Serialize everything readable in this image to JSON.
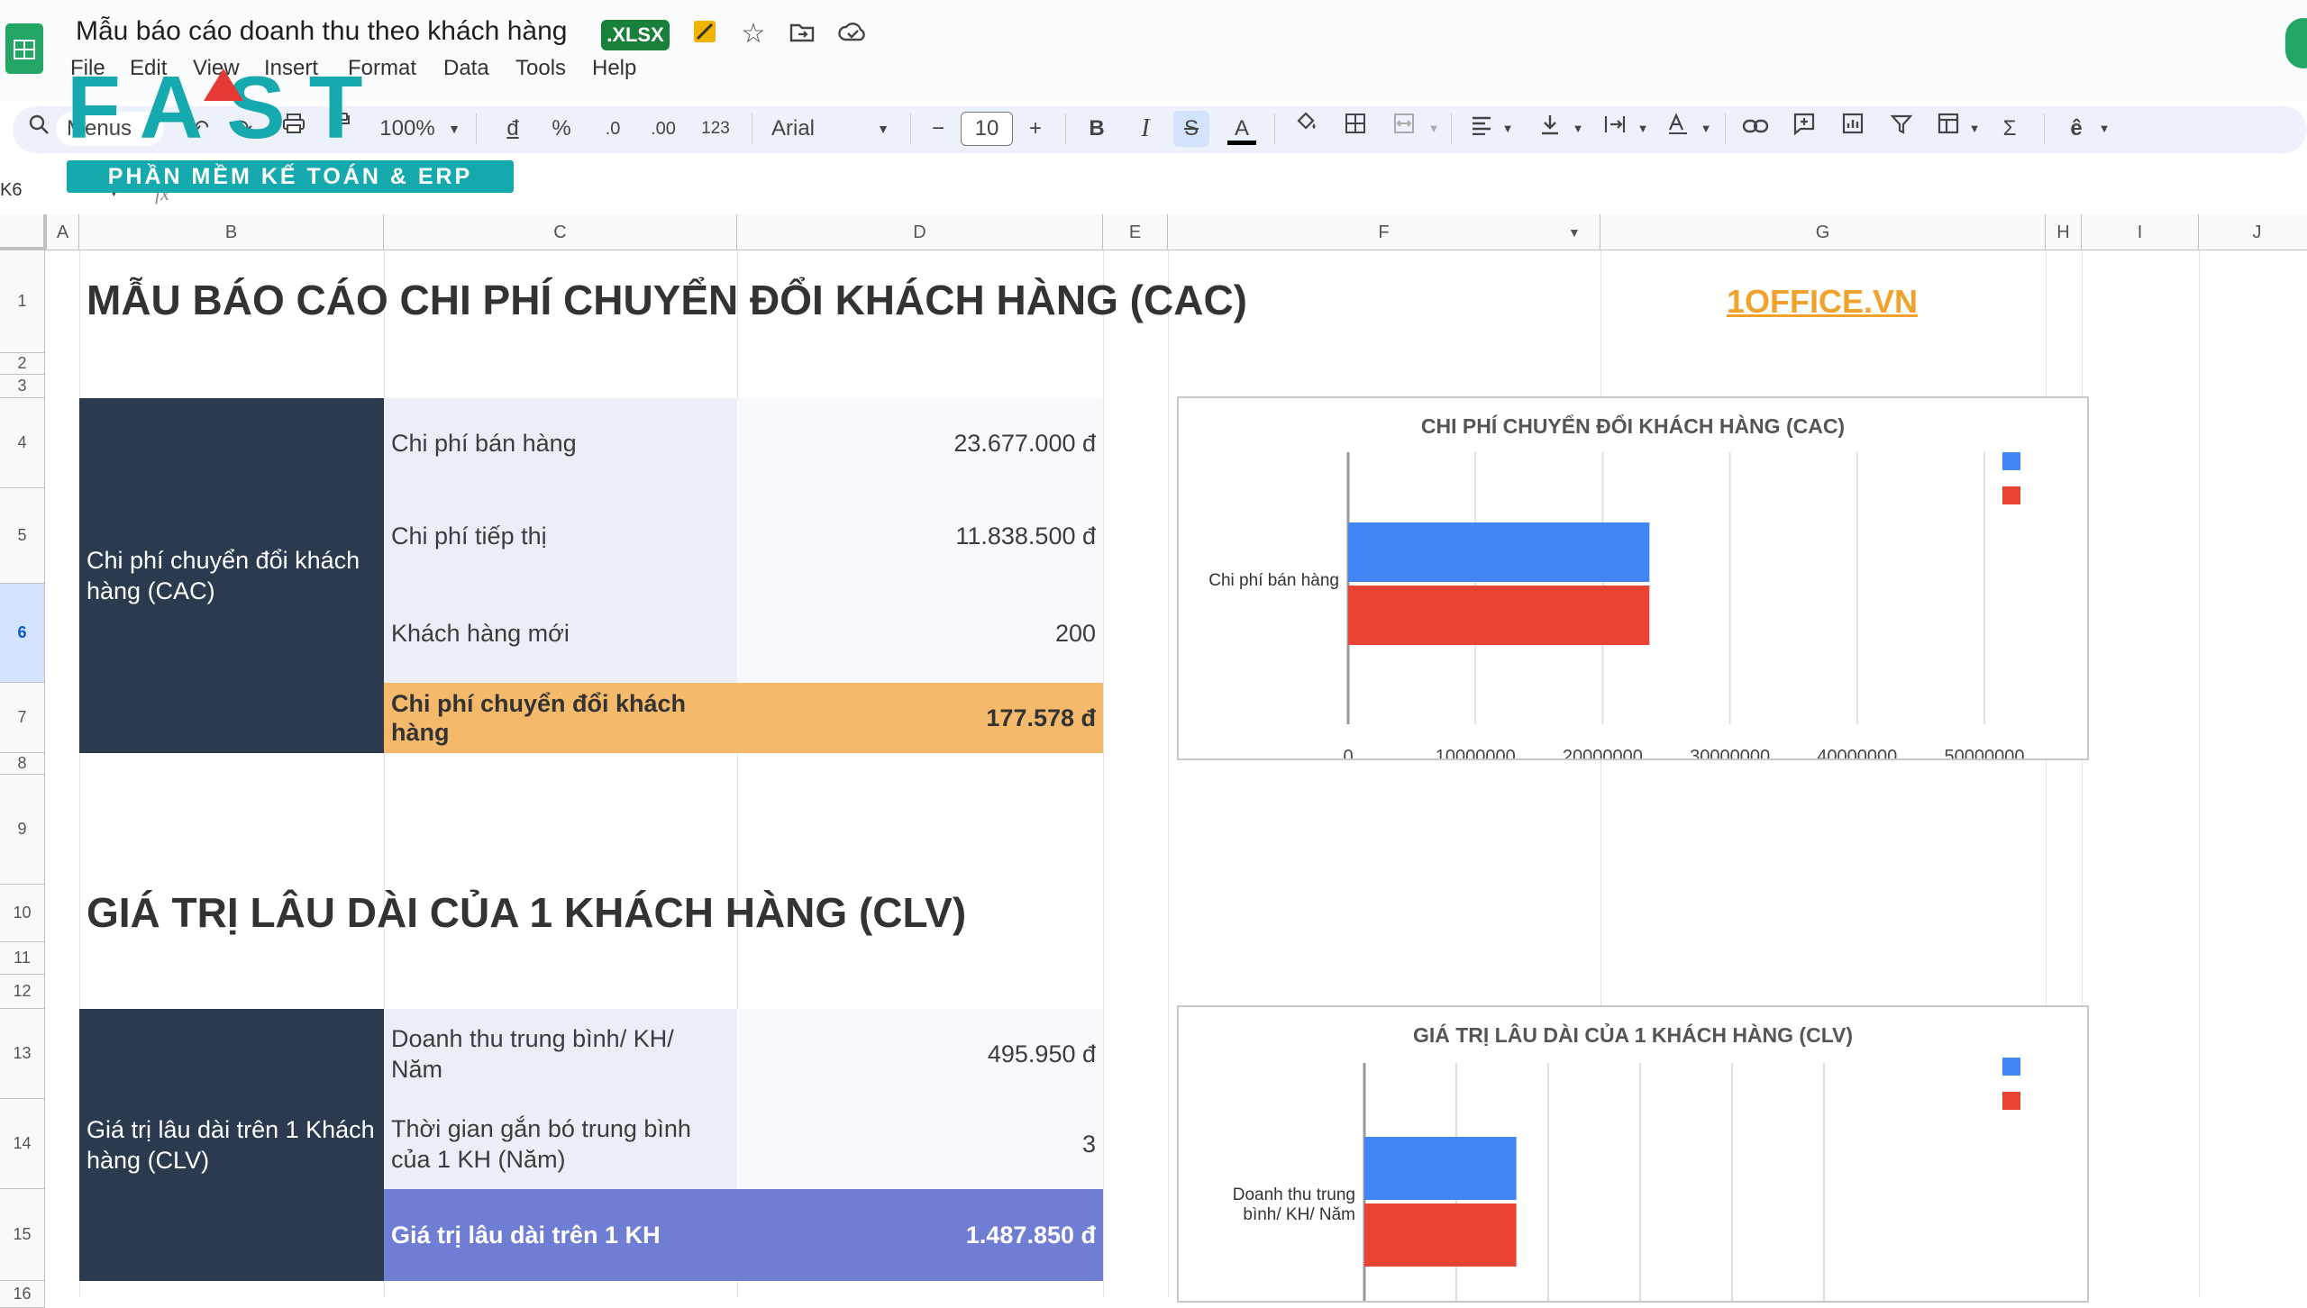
{
  "app": {
    "title": "Mẫu báo cáo doanh thu theo khách hàng",
    "badge": ".XLSX",
    "menu": [
      "File",
      "Edit",
      "View",
      "Insert",
      "Format",
      "Data",
      "Tools",
      "Help"
    ]
  },
  "toolbar": {
    "search_text": "Menus",
    "zoom": "100%",
    "currency": "đ",
    "percent": "%",
    "dec_decrease": ".0",
    "dec_increase": ".00",
    "number_format": "123",
    "font": "Arial",
    "font_size": "10",
    "minus": "−",
    "plus": "+",
    "bold": "B",
    "italic": "I",
    "strike": "S",
    "textcolor": "A",
    "sigma": "Σ"
  },
  "formula_bar": {
    "cell_ref": "K6",
    "fx": "fx"
  },
  "watermark": {
    "letters": "FAST",
    "subtitle": "PHẦN MỀM KẾ TOÁN & ERP"
  },
  "columns": [
    "A",
    "B",
    "C",
    "D",
    "E",
    "F",
    "G",
    "H",
    "I",
    "J"
  ],
  "rows": [
    "1",
    "2",
    "3",
    "4",
    "5",
    "6",
    "7",
    "8",
    "9",
    "10",
    "11",
    "12",
    "13",
    "14",
    "15",
    "16"
  ],
  "cac": {
    "title": "MẪU BÁO CÁO CHI PHÍ CHUYỂN ĐỔI KHÁCH HÀNG (CAC)",
    "link": "1OFFICE.VN",
    "merged_label": "Chi phí chuyển đổi khách hàng (CAC)",
    "rows": [
      {
        "label": "Chi phí bán hàng",
        "value": "23.677.000 đ"
      },
      {
        "label": "Chi phí tiếp thị",
        "value": "11.838.500 đ"
      },
      {
        "label": "Khách hàng mới",
        "value": "200"
      }
    ],
    "total_label": "Chi phí chuyển đổi khách hàng",
    "total_value": "177.578 đ"
  },
  "clv": {
    "title": "GIÁ TRỊ LÂU DÀI CỦA 1 KHÁCH HÀNG (CLV)",
    "merged_label": "Giá trị lâu dài trên 1 Khách hàng (CLV)",
    "rows": [
      {
        "label": "Doanh thu trung bình/ KH/ Năm",
        "value": "495.950 đ"
      },
      {
        "label": "Thời gian gắn bó trung bình của 1 KH (Năm)",
        "value": "3"
      }
    ],
    "total_label": "Giá trị lâu dài trên 1 KH",
    "total_value": "1.487.850 đ"
  },
  "chart_data": [
    {
      "type": "bar",
      "orientation": "horizontal",
      "title": "CHI PHÍ CHUYỂN ĐỔI KHÁCH HÀNG (CAC)",
      "categories": [
        "Chi phí bán hàng"
      ],
      "series": [
        {
          "values": [
            23677000
          ],
          "color": "#4285f4"
        },
        {
          "values": [
            23677000
          ],
          "color": "#ea4335"
        }
      ],
      "xlim": [
        0,
        50000000
      ],
      "ticks": [
        "0",
        "10000000",
        "20000000",
        "30000000",
        "40000000",
        "50000000"
      ],
      "grid": true,
      "legend": "top-right"
    },
    {
      "type": "bar",
      "orientation": "horizontal",
      "title": "GIÁ TRỊ LÂU DÀI CỦA 1 KHÁCH HÀNG (CLV)",
      "categories": [
        "Doanh thu trung bình/ KH/ Năm"
      ],
      "series": [
        {
          "values": [
            495950
          ],
          "color": "#4285f4"
        },
        {
          "values": [
            495950
          ],
          "color": "#ea4335"
        }
      ],
      "xlim": [
        0,
        1500000
      ],
      "grid": true,
      "legend": "top-right"
    }
  ]
}
